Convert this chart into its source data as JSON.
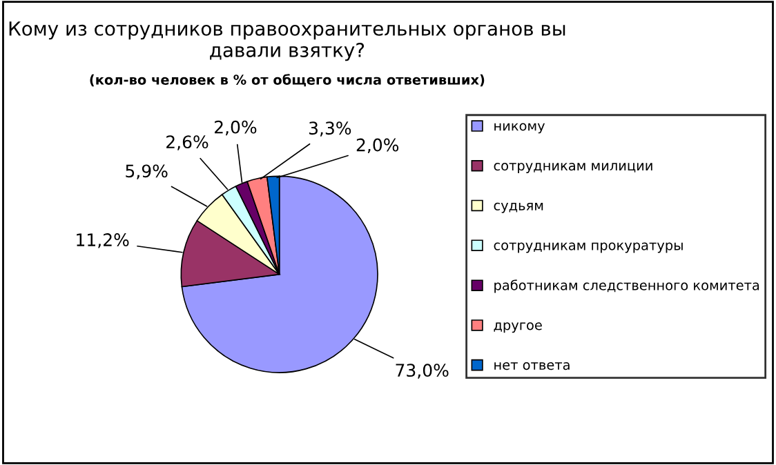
{
  "chart_data": {
    "type": "pie",
    "title": "Кому из сотрудников правоохранительных органов вы давали взятку?",
    "subtitle": "(кол-во человек в % от общего числа ответивших)",
    "categories": [
      "никому",
      "сотрудникам милиции",
      "судьям",
      "сотрудникам прокуратуры",
      "работникам следственного комитета",
      "другое",
      "нет ответа"
    ],
    "values": [
      73.0,
      11.2,
      5.9,
      2.6,
      2.0,
      3.3,
      2.0
    ],
    "colors": [
      "#9999ff",
      "#993366",
      "#ffffcc",
      "#ccffff",
      "#660066",
      "#ff8080",
      "#0066cc"
    ],
    "value_labels": [
      "73,0%",
      "11,2%",
      "5,9%",
      "2,6%",
      "2,0%",
      "3,3%",
      "2,0%"
    ],
    "legend": "right"
  }
}
